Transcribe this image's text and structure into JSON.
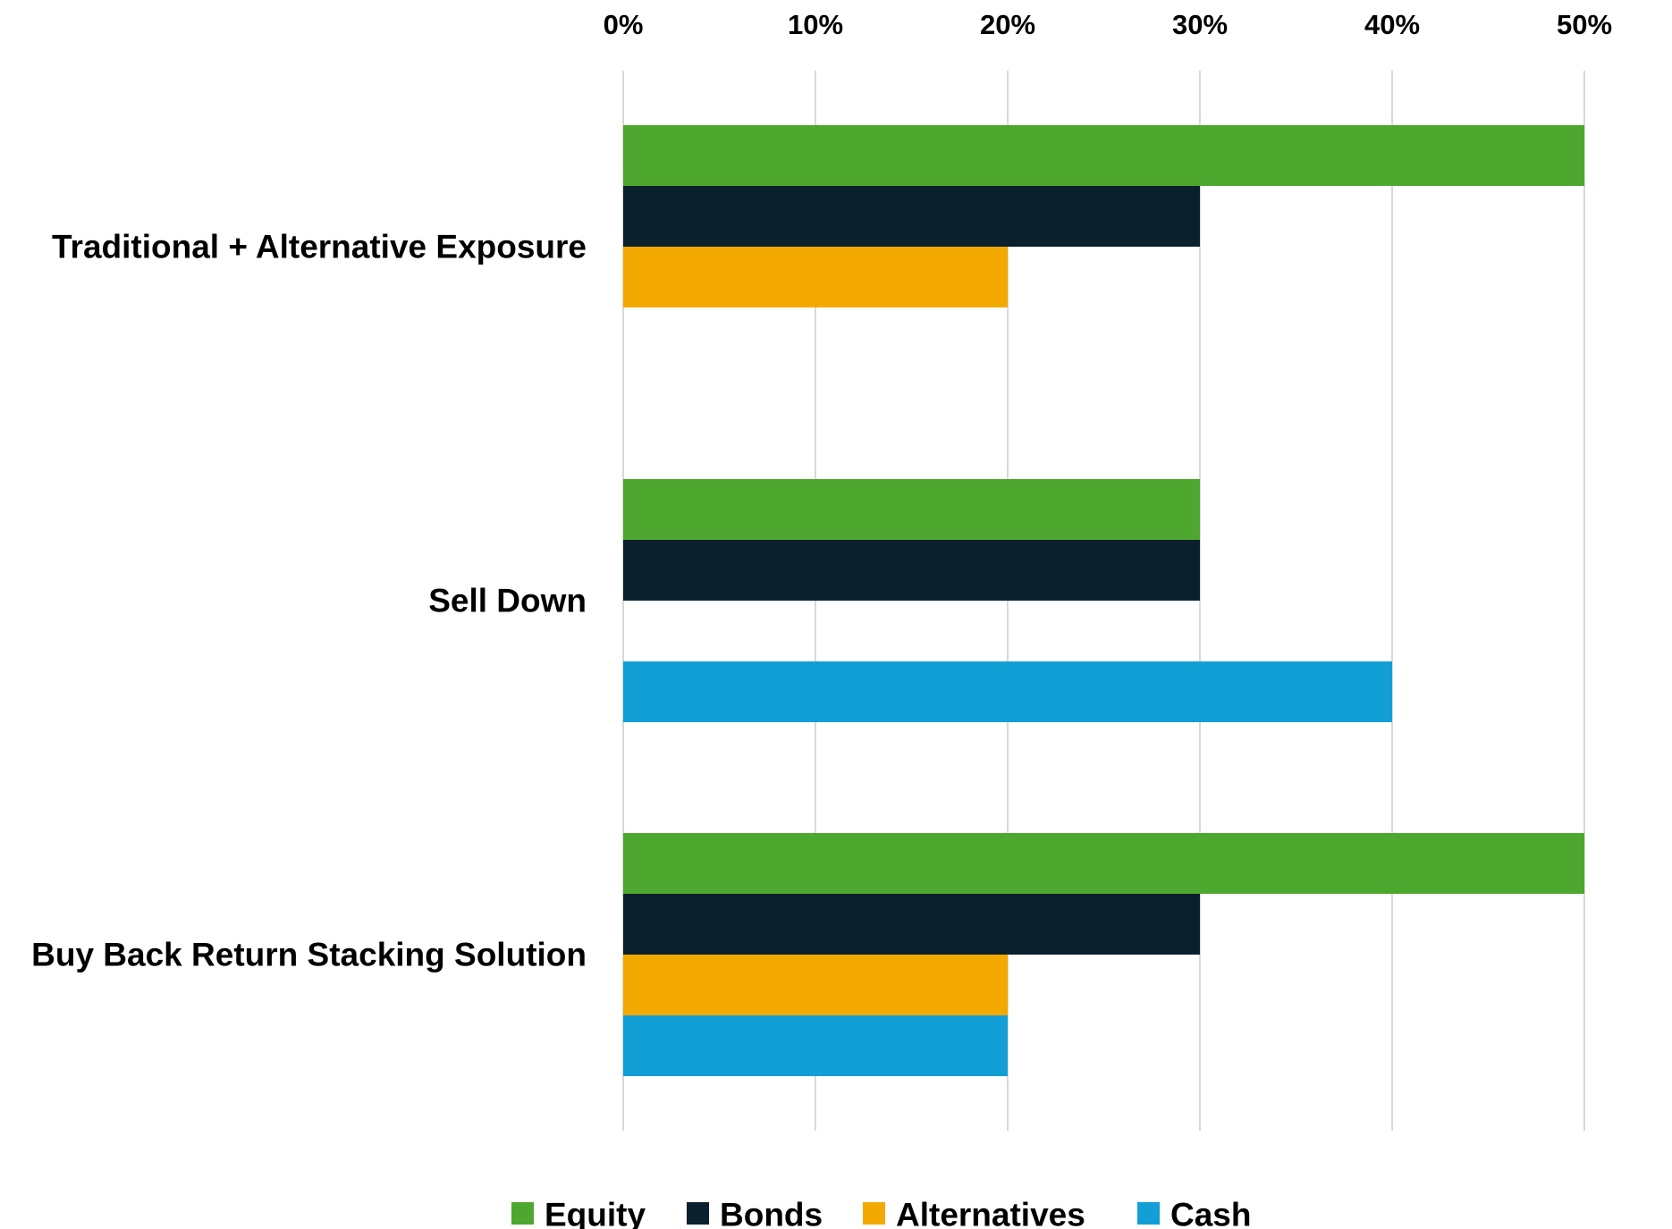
{
  "chart_data": {
    "type": "bar",
    "orientation": "horizontal",
    "title": "",
    "xlabel": "",
    "ylabel": "",
    "xlim": [
      0,
      50
    ],
    "x_ticks": [
      0,
      10,
      20,
      30,
      40,
      50
    ],
    "tick_labels": [
      "0%",
      "10%",
      "20%",
      "30%",
      "40%",
      "50%"
    ],
    "axis_position": "top",
    "grid": true,
    "legend_position": "bottom",
    "categories": [
      "Traditional + Alternative Exposure",
      "Sell Down",
      "Buy Back Return Stacking Solution"
    ],
    "series": [
      {
        "name": "Equity",
        "color": "#4ea72e",
        "values": [
          50,
          30,
          50
        ]
      },
      {
        "name": "Bonds",
        "color": "#0a202d",
        "values": [
          30,
          30,
          30
        ]
      },
      {
        "name": "Alternatives",
        "color": "#f4a900",
        "values": [
          20,
          0,
          20
        ]
      },
      {
        "name": "Cash",
        "color": "#119fd6",
        "values": [
          0,
          40,
          20
        ]
      }
    ]
  }
}
